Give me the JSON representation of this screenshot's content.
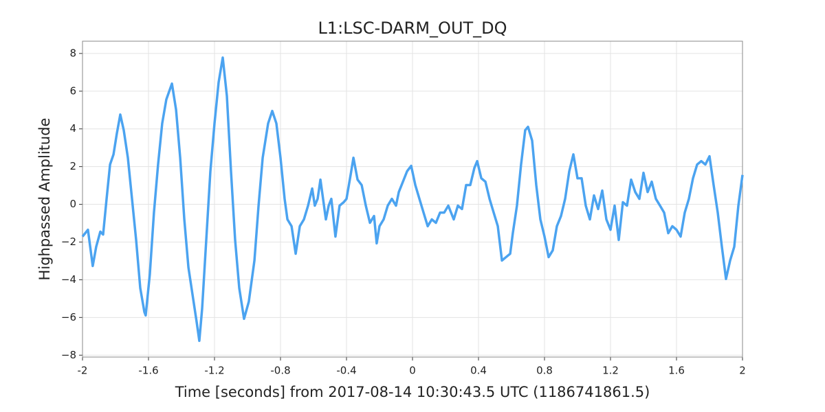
{
  "chart_data": {
    "type": "line",
    "title": "L1:LSC-DARM_OUT_DQ",
    "xlabel": "Time [seconds] from 2017-08-14 10:30:43.5 UTC (1186741861.5)",
    "ylabel": "Highpassed Amplitude",
    "color": "#4ba3f0",
    "grid": true,
    "xlim": [
      -2,
      2
    ],
    "ylim": [
      -8.1,
      8.65
    ],
    "xticks": [
      -2,
      -1.6,
      -1.2,
      -0.8,
      -0.4,
      0,
      0.4,
      0.8,
      1.2,
      1.6,
      2
    ],
    "yticks": [
      {
        "value": -8,
        "label": "−8"
      },
      {
        "value": -6,
        "label": "−6"
      },
      {
        "value": -4,
        "label": "−4"
      },
      {
        "value": -2,
        "label": "−2"
      },
      0,
      2,
      4,
      6,
      8
    ],
    "x": [
      -2,
      -1.967,
      -1.938,
      -1.917,
      -1.892,
      -1.875,
      -1.854,
      -1.833,
      -1.812,
      -1.792,
      -1.771,
      -1.75,
      -1.725,
      -1.7,
      -1.675,
      -1.65,
      -1.625,
      -1.617,
      -1.592,
      -1.567,
      -1.542,
      -1.517,
      -1.492,
      -1.458,
      -1.433,
      -1.408,
      -1.383,
      -1.358,
      -1.333,
      -1.308,
      -1.292,
      -1.275,
      -1.25,
      -1.225,
      -1.2,
      -1.175,
      -1.15,
      -1.125,
      -1.1,
      -1.075,
      -1.05,
      -1.021,
      -0.992,
      -0.958,
      -0.933,
      -0.908,
      -0.875,
      -0.85,
      -0.825,
      -0.8,
      -0.775,
      -0.758,
      -0.733,
      -0.708,
      -0.683,
      -0.658,
      -0.633,
      -0.608,
      -0.592,
      -0.575,
      -0.558,
      -0.542,
      -0.525,
      -0.508,
      -0.492,
      -0.467,
      -0.442,
      -0.417,
      -0.4,
      -0.375,
      -0.358,
      -0.333,
      -0.308,
      -0.283,
      -0.258,
      -0.233,
      -0.217,
      -0.2,
      -0.175,
      -0.15,
      -0.125,
      -0.1,
      -0.083,
      -0.058,
      -0.033,
      -0.008,
      0.017,
      0.042,
      0.067,
      0.092,
      0.117,
      0.142,
      0.167,
      0.192,
      0.217,
      0.25,
      0.275,
      0.3,
      0.325,
      0.35,
      0.375,
      0.392,
      0.417,
      0.442,
      0.467,
      0.492,
      0.517,
      0.542,
      0.567,
      0.592,
      0.608,
      0.633,
      0.658,
      0.683,
      0.7,
      0.725,
      0.75,
      0.775,
      0.8,
      0.825,
      0.85,
      0.875,
      0.9,
      0.925,
      0.95,
      0.975,
      1.0,
      1.025,
      1.05,
      1.075,
      1.1,
      1.125,
      1.15,
      1.175,
      1.2,
      1.225,
      1.25,
      1.275,
      1.3,
      1.325,
      1.35,
      1.375,
      1.4,
      1.425,
      1.45,
      1.475,
      1.5,
      1.525,
      1.55,
      1.575,
      1.6,
      1.625,
      1.65,
      1.675,
      1.7,
      1.725,
      1.75,
      1.775,
      1.8,
      1.825,
      1.85,
      1.875,
      1.9,
      1.925,
      1.95,
      1.975,
      2.0
    ],
    "values": [
      -1.71,
      -1.35,
      -3.27,
      -2.25,
      -1.45,
      -1.6,
      0.29,
      2.11,
      2.65,
      3.75,
      4.76,
      3.93,
      2.47,
      0.29,
      -1.89,
      -4.44,
      -5.71,
      -5.89,
      -3.71,
      -0.44,
      2.11,
      4.29,
      5.56,
      6.4,
      5.02,
      2.47,
      -0.8,
      -3.35,
      -4.8,
      -6.25,
      -7.24,
      -5.53,
      -1.89,
      1.75,
      4.29,
      6.47,
      7.78,
      5.75,
      1.75,
      -1.89,
      -4.44,
      -6.07,
      -5.16,
      -2.98,
      -0.07,
      2.47,
      4.29,
      4.95,
      4.29,
      2.47,
      0.29,
      -0.8,
      -1.16,
      -2.62,
      -1.16,
      -0.8,
      -0.07,
      0.84,
      -0.07,
      0.29,
      1.31,
      0.29,
      -0.8,
      -0.07,
      0.29,
      -1.71,
      -0.07,
      0.11,
      0.29,
      1.56,
      2.47,
      1.31,
      1.02,
      -0.07,
      -0.98,
      -0.62,
      -2.07,
      -1.16,
      -0.8,
      -0.07,
      0.29,
      -0.07,
      0.65,
      1.2,
      1.75,
      2.04,
      1.02,
      0.29,
      -0.44,
      -1.16,
      -0.8,
      -0.98,
      -0.44,
      -0.44,
      -0.07,
      -0.8,
      -0.07,
      -0.25,
      1.02,
      1.02,
      1.93,
      2.29,
      1.38,
      1.2,
      0.29,
      -0.44,
      -1.16,
      -2.98,
      -2.8,
      -2.62,
      -1.53,
      -0.07,
      2.11,
      3.93,
      4.11,
      3.38,
      1.02,
      -0.8,
      -1.71,
      -2.8,
      -2.44,
      -1.16,
      -0.62,
      0.29,
      1.75,
      2.65,
      1.38,
      1.38,
      -0.07,
      -0.8,
      0.47,
      -0.25,
      0.73,
      -0.8,
      -1.35,
      -0.07,
      -1.89,
      0.11,
      -0.07,
      1.31,
      0.65,
      0.29,
      1.67,
      0.65,
      1.2,
      0.29,
      -0.07,
      -0.44,
      -1.53,
      -1.16,
      -1.35,
      -1.71,
      -0.44,
      0.29,
      1.38,
      2.11,
      2.29,
      2.11,
      2.55,
      1.02,
      -0.44,
      -2.25,
      -3.96,
      -2.98,
      -2.25,
      -0.07,
      1.56
    ]
  }
}
